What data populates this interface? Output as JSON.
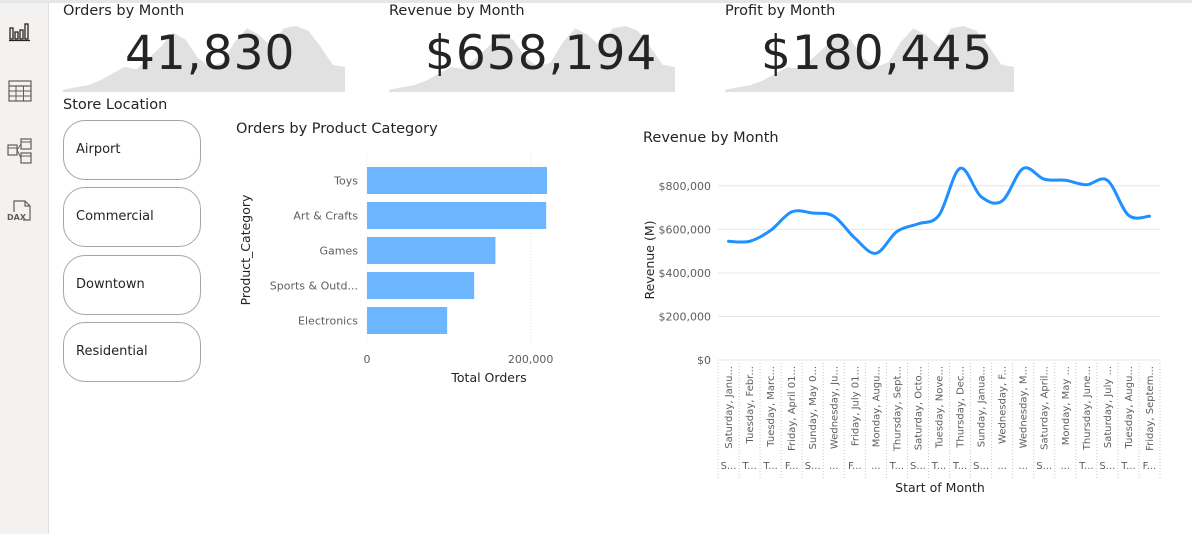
{
  "sidebar": {
    "items": [
      {
        "icon": "report-view-icon"
      },
      {
        "icon": "table-view-icon"
      },
      {
        "icon": "model-view-icon"
      },
      {
        "icon": "dax-query-view-icon"
      }
    ]
  },
  "kpis": [
    {
      "title": "Orders by Month",
      "value": "41,830"
    },
    {
      "title": "Revenue by Month",
      "value": "$658,194"
    },
    {
      "title": "Profit by Month",
      "value": "$180,445"
    }
  ],
  "sparkline": {
    "color": "#e1e1e1",
    "values": [
      2,
      4,
      6,
      10,
      16,
      22,
      20,
      30,
      40,
      52,
      46,
      30,
      22,
      26,
      44,
      56,
      50,
      40,
      56,
      58,
      54,
      40,
      24,
      22
    ]
  },
  "slicer": {
    "title": "Store Location",
    "options": [
      "Airport",
      "Commercial",
      "Downtown",
      "Residential"
    ]
  },
  "bar_chart_title": "Orders by Product Category",
  "line_chart_title": "Revenue by Month",
  "chart_data": [
    {
      "type": "bar",
      "orientation": "horizontal",
      "title": "Orders by Product Category",
      "categories": [
        "Toys",
        "Art & Crafts",
        "Games",
        "Sports & Outd...",
        "Electronics"
      ],
      "values": [
        220000,
        219000,
        157000,
        131000,
        98000
      ],
      "xlabel": "Total Orders",
      "ylabel": "Product_Category",
      "xlim": [
        0,
        220000
      ],
      "xticks": [
        {
          "value": 0,
          "label": "0"
        },
        {
          "value": 200000,
          "label": "200,000"
        }
      ],
      "color": "#6cb6ff"
    },
    {
      "type": "line",
      "title": "Revenue by Month",
      "xlabel": "Start of Month",
      "ylabel": "Revenue (M)",
      "ylim": [
        0,
        900000
      ],
      "yticks": [
        {
          "value": 0,
          "label": "$0"
        },
        {
          "value": 200000,
          "label": "$200,000"
        },
        {
          "value": 400000,
          "label": "$400,000"
        },
        {
          "value": 600000,
          "label": "$600,000"
        },
        {
          "value": 800000,
          "label": "$800,000"
        }
      ],
      "grid": true,
      "color": "#1e90ff",
      "x_labels": [
        "Saturday, Janu...",
        "Tuesday, Febr...",
        "Tuesday, Marc...",
        "Friday, April 01...",
        "Sunday, May 0...",
        "Wednesday, Ju...",
        "Friday, July 01...",
        "Monday, Augu...",
        "Thursday, Sept...",
        "Saturday, Octo...",
        "Tuesday, Nove...",
        "Thursday, Dec...",
        "Sunday, Janua...",
        "Wednesday, F...",
        "Wednesday, M...",
        "Saturday, April...",
        "Monday, May ...",
        "Thursday, June...",
        "Saturday, July ...",
        "Tuesday, Augu...",
        "Friday, Septem..."
      ],
      "x_sublabels": [
        "S...",
        "T...",
        "T...",
        "F...",
        "S...",
        "...",
        "F...",
        "...",
        "T...",
        "S...",
        "T...",
        "T...",
        "S...",
        "...",
        "...",
        "S...",
        "...",
        "T...",
        "S...",
        "T...",
        "F..."
      ],
      "x": [
        0,
        1,
        2,
        3,
        4,
        5,
        6,
        7,
        8,
        9,
        10,
        11,
        12,
        13,
        14,
        15,
        16,
        17,
        18,
        19,
        20
      ],
      "values": [
        545000,
        545000,
        595000,
        680000,
        675000,
        660000,
        560000,
        490000,
        590000,
        625000,
        665000,
        880000,
        750000,
        730000,
        880000,
        830000,
        825000,
        805000,
        825000,
        665000,
        660000
      ]
    }
  ]
}
